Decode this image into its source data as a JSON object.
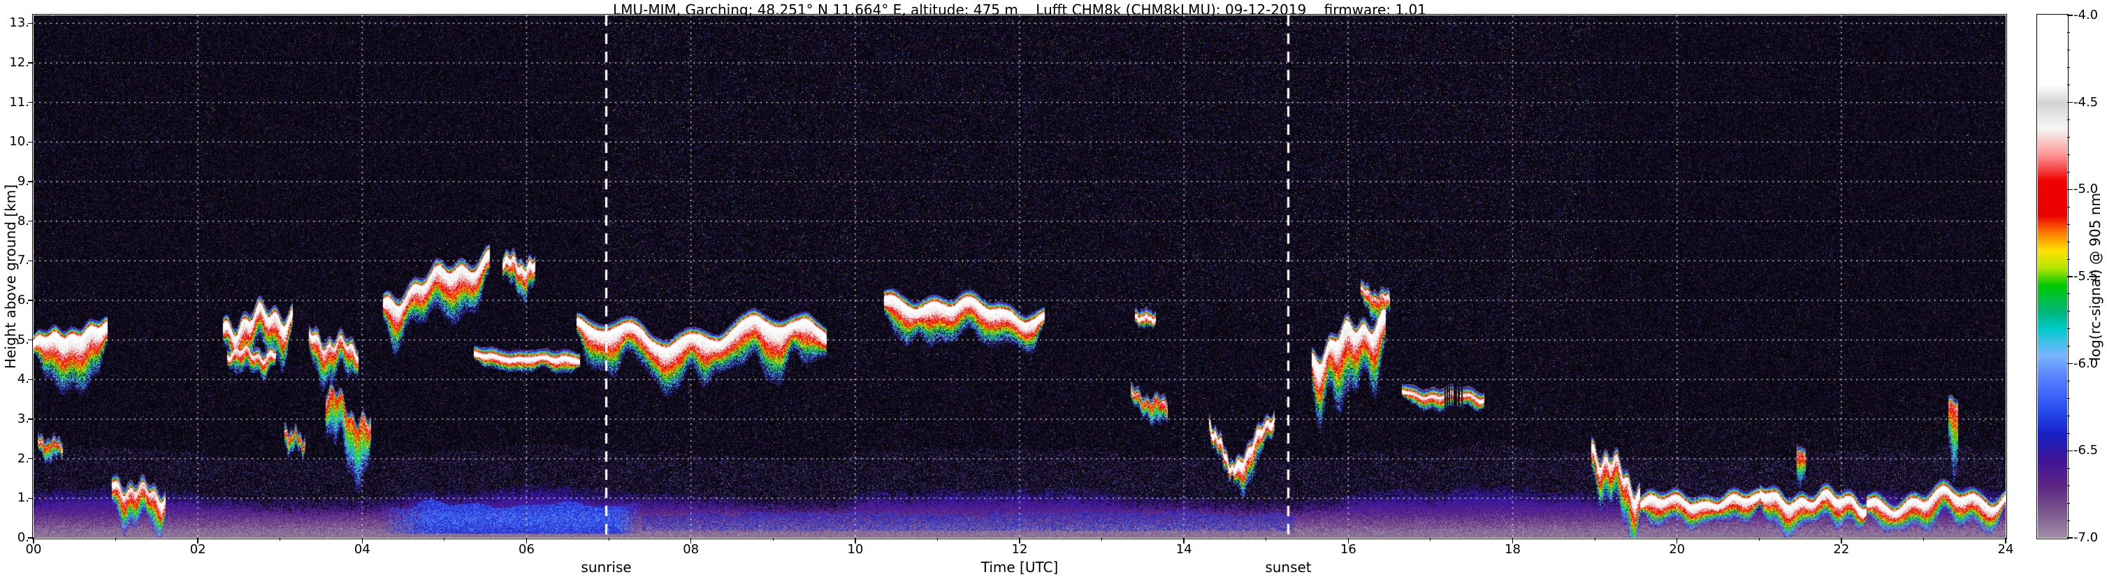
{
  "title": "LMU-MIM, Garching; 48.251° N 11.664° E, altitude: 475 m    Lufft CHM8k (CHM8kLMU): 09-12-2019    firmware: 1.01",
  "axes": {
    "xlabel": "Time [UTC]",
    "ylabel": "Height above ground [km]",
    "x_range": [
      0,
      24
    ],
    "y_range": [
      0,
      13.2
    ],
    "x_ticks": [
      {
        "v": 0,
        "label": "00"
      },
      {
        "v": 2,
        "label": "02"
      },
      {
        "v": 4,
        "label": "04"
      },
      {
        "v": 6,
        "label": "06"
      },
      {
        "v": 8,
        "label": "08"
      },
      {
        "v": 10,
        "label": "10"
      },
      {
        "v": 12,
        "label": "12"
      },
      {
        "v": 14,
        "label": "14"
      },
      {
        "v": 16,
        "label": "16"
      },
      {
        "v": 18,
        "label": "18"
      },
      {
        "v": 20,
        "label": "20"
      },
      {
        "v": 22,
        "label": "22"
      },
      {
        "v": 24,
        "label": "24"
      }
    ],
    "x_minor_hours": [
      1,
      3,
      5,
      7,
      9,
      11,
      13,
      15,
      17,
      19,
      21,
      23
    ],
    "y_ticks": [
      {
        "v": 13,
        "label": "13."
      },
      {
        "v": 12,
        "label": "12."
      },
      {
        "v": 11,
        "label": "11."
      },
      {
        "v": 10,
        "label": "10."
      },
      {
        "v": 9,
        "label": "9."
      },
      {
        "v": 8,
        "label": "8."
      },
      {
        "v": 7,
        "label": "7."
      },
      {
        "v": 6,
        "label": "6."
      },
      {
        "v": 5,
        "label": "5."
      },
      {
        "v": 4,
        "label": "4."
      },
      {
        "v": 3,
        "label": "3."
      },
      {
        "v": 2,
        "label": "2."
      },
      {
        "v": 1,
        "label": "1."
      },
      {
        "v": 0,
        "label": "0."
      }
    ]
  },
  "annotations": {
    "sunrise_label": "sunrise",
    "sunset_label": "sunset",
    "sunrise_utc": 6.97,
    "sunset_utc": 15.27
  },
  "colorbar": {
    "label": "log(rc-signal) @ 905 nm",
    "range_top": -4.0,
    "range_bottom": -7.0,
    "minor_step": 0.1,
    "ticks": [
      {
        "v": -4.0,
        "label": "-4.0"
      },
      {
        "v": -4.5,
        "label": "-4.5"
      },
      {
        "v": -5.0,
        "label": "-5.0"
      },
      {
        "v": -5.5,
        "label": "-5.5"
      },
      {
        "v": -6.0,
        "label": "-6.0"
      },
      {
        "v": -6.5,
        "label": "-6.5"
      },
      {
        "v": -7.0,
        "label": "-7.0"
      }
    ],
    "stops": [
      {
        "v": -7.3,
        "rgb": [
          38,
          26,
          50
        ]
      },
      {
        "v": -7.0,
        "rgb": [
          162,
          142,
          168
        ]
      },
      {
        "v": -6.85,
        "rgb": [
          122,
          86,
          142
        ]
      },
      {
        "v": -6.7,
        "rgb": [
          92,
          36,
          132
        ]
      },
      {
        "v": -6.55,
        "rgb": [
          62,
          20,
          152
        ]
      },
      {
        "v": -6.4,
        "rgb": [
          22,
          34,
          200
        ]
      },
      {
        "v": -6.25,
        "rgb": [
          42,
          82,
          240
        ]
      },
      {
        "v": -6.1,
        "rgb": [
          82,
          122,
          255
        ]
      },
      {
        "v": -5.95,
        "rgb": [
          122,
          182,
          255
        ]
      },
      {
        "v": -5.8,
        "rgb": [
          0,
          202,
          202
        ]
      },
      {
        "v": -5.7,
        "rgb": [
          0,
          182,
          122
        ]
      },
      {
        "v": -5.55,
        "rgb": [
          0,
          200,
          0
        ]
      },
      {
        "v": -5.45,
        "rgb": [
          182,
          230,
          0
        ]
      },
      {
        "v": -5.35,
        "rgb": [
          255,
          225,
          0
        ]
      },
      {
        "v": -5.25,
        "rgb": [
          255,
          125,
          0
        ]
      },
      {
        "v": -5.15,
        "rgb": [
          232,
          0,
          0
        ]
      },
      {
        "v": -4.95,
        "rgb": [
          240,
          0,
          0
        ]
      },
      {
        "v": -4.8,
        "rgb": [
          255,
          150,
          150
        ]
      },
      {
        "v": -4.65,
        "rgb": [
          246,
          246,
          246
        ]
      },
      {
        "v": -4.5,
        "rgb": [
          212,
          212,
          212
        ]
      },
      {
        "v": -4.4,
        "rgb": [
          255,
          255,
          255
        ]
      },
      {
        "v": -4.0,
        "rgb": [
          255,
          255,
          255
        ]
      }
    ]
  },
  "chart_data": {
    "type": "heatmap",
    "title": "LMU-MIM, Garching; 48.251° N 11.664° E, altitude: 475 m    Lufft CHM8k (CHM8kLMU): 09-12-2019    firmware: 1.01",
    "instrument": "Lufft CHM8k (CHM8kLMU)",
    "date": "09-12-2019",
    "firmware": "1.01",
    "site": "LMU-MIM, Garching",
    "latitude": "48.251° N",
    "longitude": "11.664° E",
    "altitude_m": 475,
    "xlabel": "Time [UTC]",
    "ylabel": "Height above ground [km]",
    "x_range": [
      0,
      24
    ],
    "y_range": [
      0,
      13.2
    ],
    "value_label": "log(rc-signal) @ 905 nm",
    "value_range": [
      -7.0,
      -4.0
    ],
    "sunrise_utc": 6.97,
    "sunset_utc": 15.27,
    "grid": {
      "x_major_hours": 2,
      "y_major_km": 1,
      "style": "dotted white"
    },
    "features": {
      "boundary_layer": {
        "top_km_mean": 1.05,
        "surface_value": -7.0,
        "gradient_per_km": 0.5,
        "cap_value": -6.5
      },
      "mixed_blue_patch": {
        "t0": 4.2,
        "t1": 7.4,
        "h_bottom": 0.12,
        "h_top": 1.0,
        "value": -6.2
      },
      "thin_blue_layer": {
        "t0": 7.4,
        "t1": 15.35,
        "h_top": 0.55,
        "value": -6.35
      },
      "clouds": [
        {
          "t0": 0.0,
          "t1": 0.9,
          "h0": 4.95,
          "h1": 5.3,
          "tail": 1.1,
          "amp": 1.0,
          "wob": 0.12
        },
        {
          "t0": 0.05,
          "t1": 0.35,
          "h0": 2.4,
          "h1": 2.3,
          "tail": 0.45,
          "amp": 0.55,
          "wob": 0.1
        },
        {
          "t0": 0.95,
          "t1": 1.6,
          "h0": 1.35,
          "h1": 1.05,
          "tail": 1.0,
          "amp": 0.8,
          "wob": 0.2
        },
        {
          "t0": 2.3,
          "t1": 3.15,
          "h0": 5.35,
          "h1": 5.7,
          "tail": 1.15,
          "amp": 0.95,
          "wob": 0.3
        },
        {
          "t0": 2.35,
          "t1": 2.95,
          "h0": 4.7,
          "h1": 4.6,
          "tail": 0.55,
          "amp": 0.85,
          "wob": 0.15
        },
        {
          "t0": 3.05,
          "t1": 3.3,
          "h0": 2.7,
          "h1": 2.4,
          "tail": 0.6,
          "amp": 0.5,
          "wob": 0.15
        },
        {
          "t0": 3.35,
          "t1": 3.95,
          "h0": 5.05,
          "h1": 4.75,
          "tail": 0.85,
          "amp": 0.8,
          "wob": 0.2
        },
        {
          "t0": 3.55,
          "t1": 4.1,
          "h0": 3.7,
          "h1": 2.7,
          "tail": 1.3,
          "amp": 0.5,
          "wob": 0.3
        },
        {
          "t0": 4.25,
          "t1": 5.55,
          "h0": 5.95,
          "h1": 7.15,
          "tail": 1.05,
          "amp": 0.95,
          "wob": 0.25
        },
        {
          "t0": 5.7,
          "t1": 6.1,
          "h0": 7.05,
          "h1": 6.8,
          "tail": 0.8,
          "amp": 0.9,
          "wob": 0.15
        },
        {
          "t0": 5.35,
          "t1": 6.65,
          "h0": 4.6,
          "h1": 4.5,
          "tail": 0.28,
          "amp": 1.0,
          "wob": 0.05
        },
        {
          "t0": 6.6,
          "t1": 9.65,
          "h0": 5.1,
          "h1": 5.25,
          "tail": 1.0,
          "amp": 1.0,
          "wob": 0.35
        },
        {
          "t0": 10.35,
          "t1": 12.3,
          "h0": 6.05,
          "h1": 5.6,
          "tail": 0.8,
          "amp": 1.0,
          "wob": 0.2
        },
        {
          "t0": 13.35,
          "t1": 13.8,
          "h0": 3.6,
          "h1": 3.3,
          "tail": 0.55,
          "amp": 0.6,
          "wob": 0.15
        },
        {
          "t0": 13.4,
          "t1": 13.65,
          "h0": 5.6,
          "h1": 5.5,
          "tail": 0.35,
          "amp": 0.9,
          "wob": 0.05
        },
        {
          "t0": 14.3,
          "t1": 14.6,
          "h0": 2.95,
          "h1": 1.7,
          "tail": 0.65,
          "amp": 0.95,
          "wob": 0.15
        },
        {
          "t0": 14.6,
          "t1": 15.1,
          "h0": 1.7,
          "h1": 3.15,
          "tail": 0.7,
          "amp": 0.95,
          "wob": 0.15
        },
        {
          "t0": 15.55,
          "t1": 16.45,
          "h0": 4.6,
          "h1": 5.65,
          "tail": 1.6,
          "amp": 0.95,
          "wob": 0.3
        },
        {
          "t0": 16.15,
          "t1": 16.5,
          "h0": 6.25,
          "h1": 6.0,
          "tail": 0.6,
          "amp": 0.7,
          "wob": 0.1
        },
        {
          "t0": 16.65,
          "t1": 17.65,
          "h0": 3.65,
          "h1": 3.55,
          "tail": 0.28,
          "amp": 0.85,
          "wob": 0.08,
          "gap": 0.5
        },
        {
          "t0": 18.95,
          "t1": 19.55,
          "h0": 2.35,
          "h1": 1.15,
          "tail": 1.3,
          "amp": 0.85,
          "wob": 0.3
        },
        {
          "t0": 19.55,
          "t1": 21.0,
          "h0": 0.9,
          "h1": 0.95,
          "tail": 0.55,
          "amp": 1.0,
          "wob": 0.15
        },
        {
          "t0": 21.0,
          "t1": 22.3,
          "h0": 1.05,
          "h1": 0.9,
          "tail": 0.6,
          "amp": 1.0,
          "wob": 0.2
        },
        {
          "t0": 21.45,
          "t1": 21.56,
          "h0": 2.2,
          "h1": 2.1,
          "tail": 1.5,
          "amp": 0.45,
          "wob": 0.05
        },
        {
          "t0": 22.3,
          "t1": 24.0,
          "h0": 0.9,
          "h1": 1.05,
          "tail": 0.6,
          "amp": 1.0,
          "wob": 0.25
        },
        {
          "t0": 23.3,
          "t1": 23.42,
          "h0": 3.45,
          "h1": 3.3,
          "tail": 2.6,
          "amp": 0.45,
          "wob": 0.05
        }
      ],
      "noise": {
        "background": "near-black with sparse purple/blue speckle at night, dense multicolor speckle in daytime above ~6 km and in evening below ~3 km"
      }
    }
  }
}
